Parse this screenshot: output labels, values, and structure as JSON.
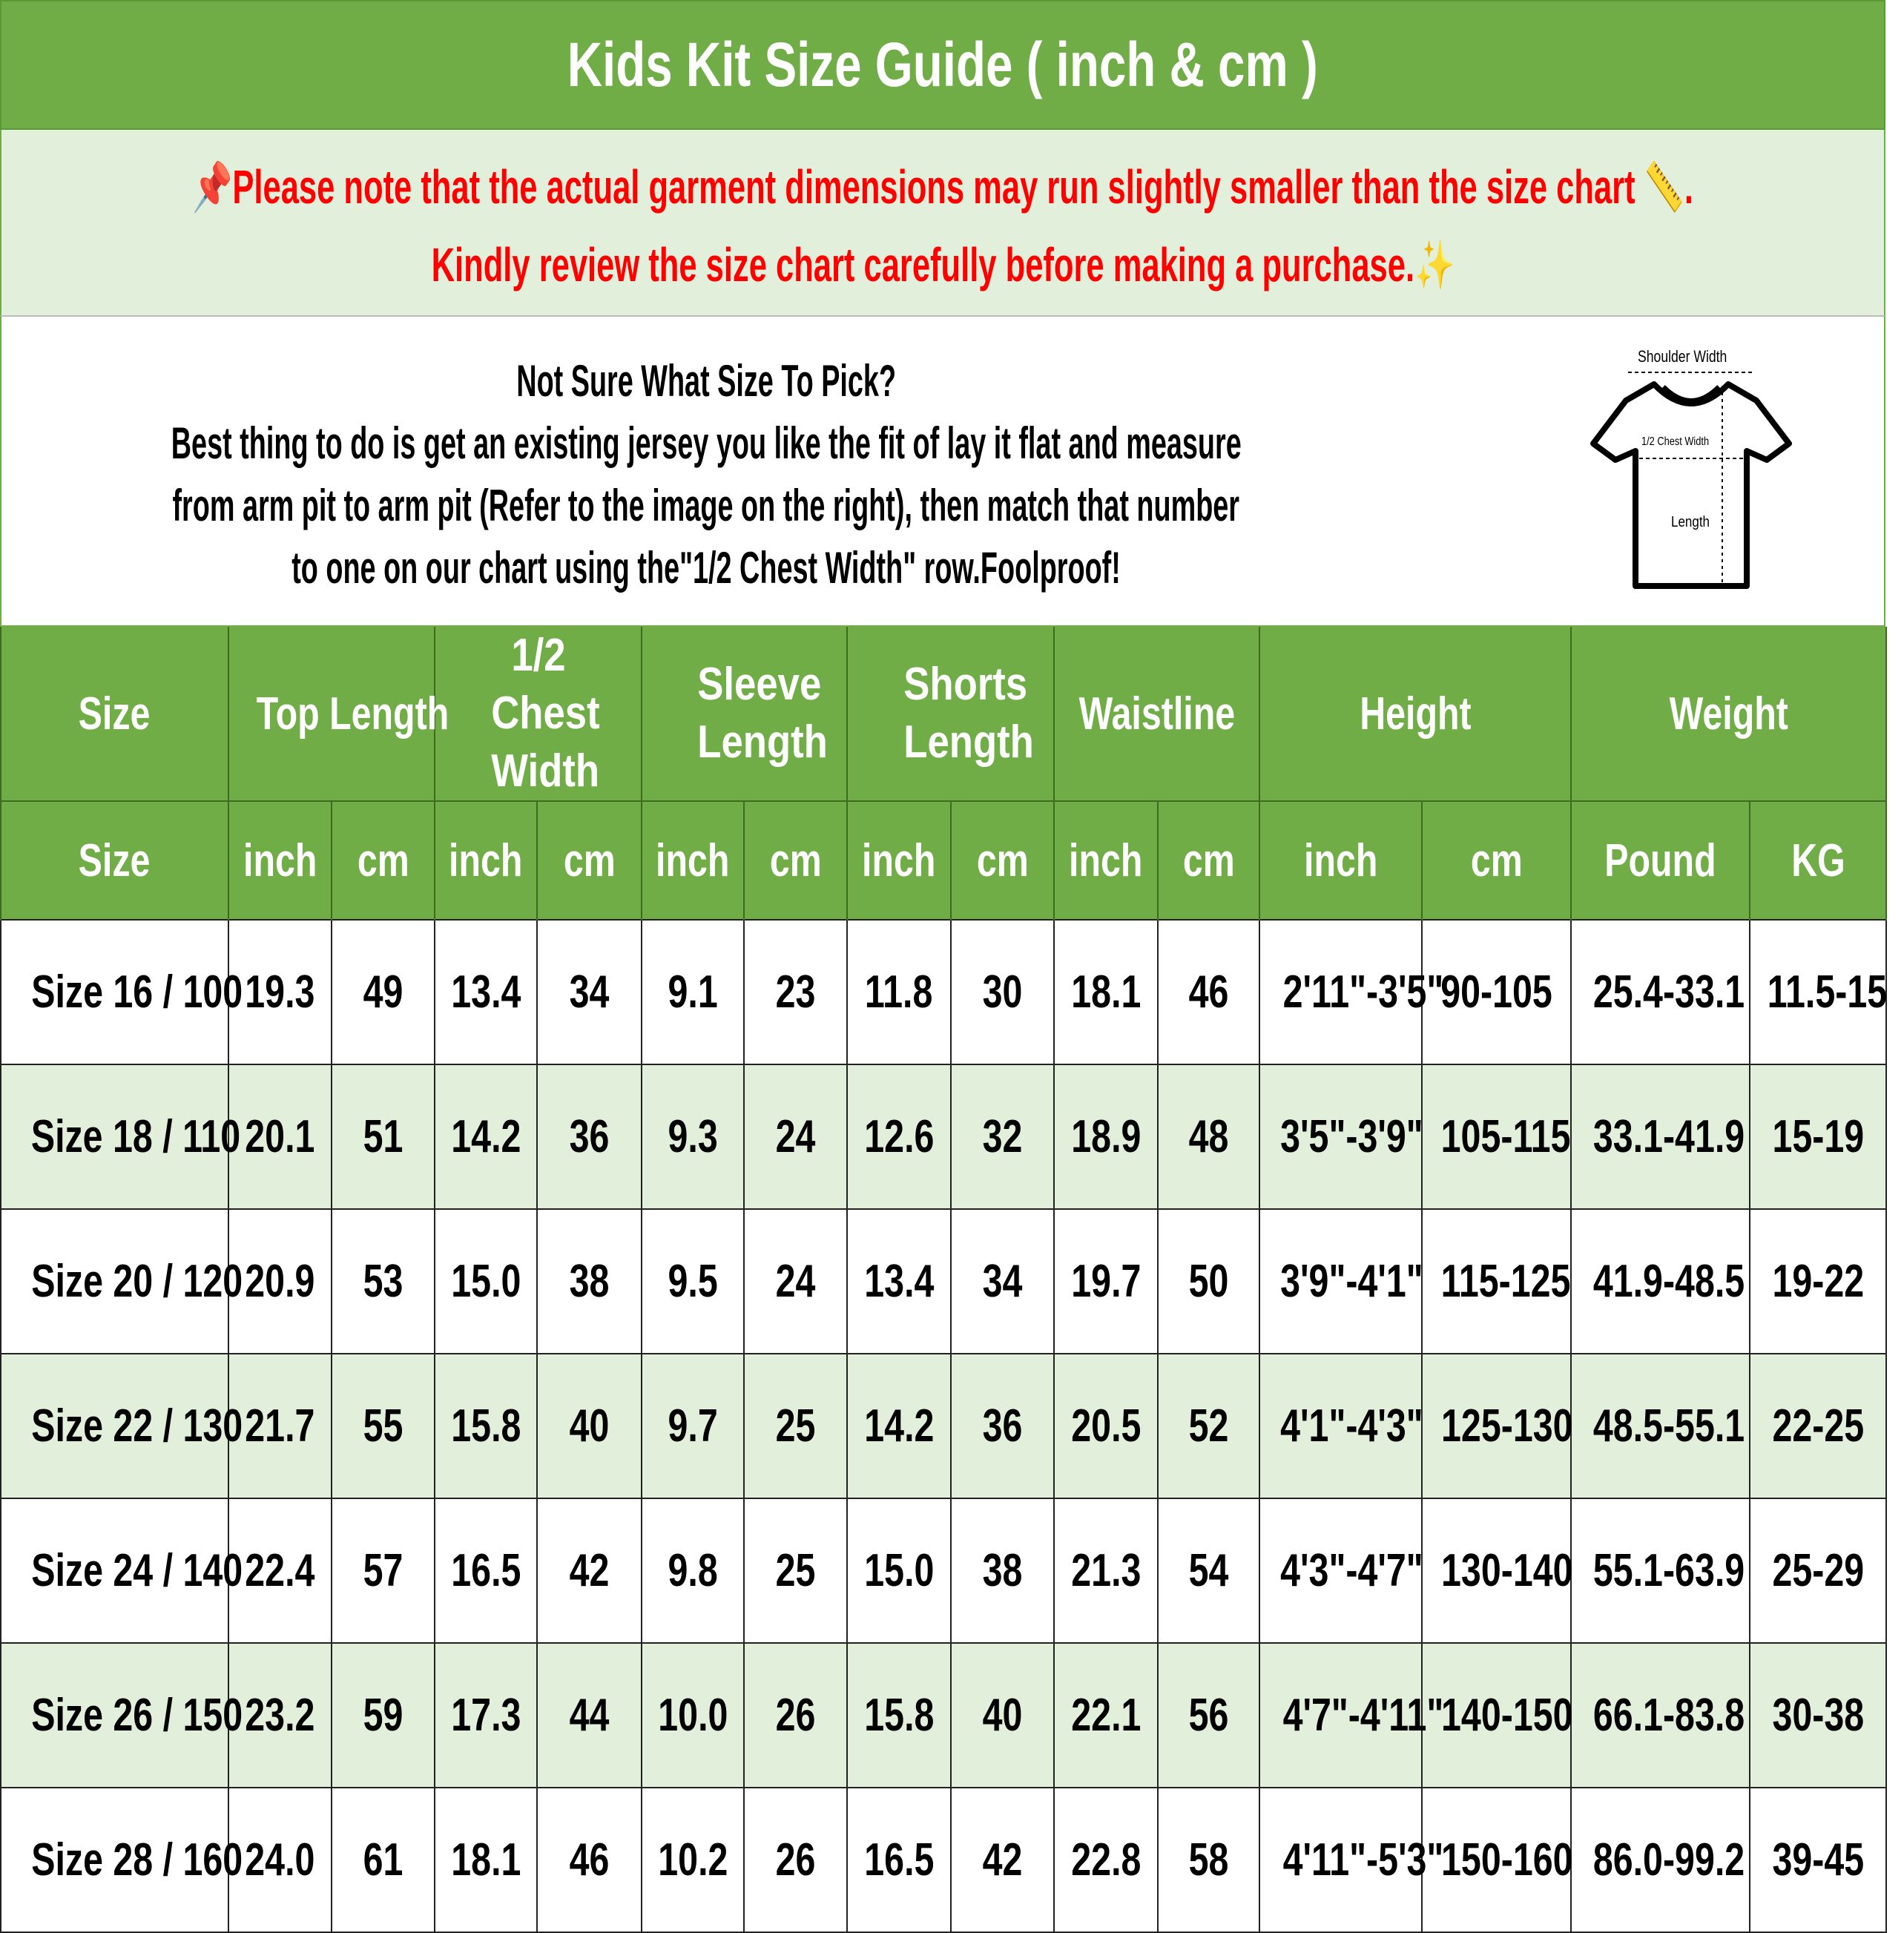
{
  "title": "Kids Kit Size Guide ( inch & cm )",
  "note": {
    "line1": "📌Please note that the actual garment dimensions may run slightly smaller than the size chart 📏.",
    "line2": "Kindly review the size chart carefully before making a purchase.✨",
    "color": "#FF0000"
  },
  "info": {
    "heading": "Not Sure What Size To Pick?",
    "line1": "Best thing to do is get an existing jersey you like the fit of lay it flat and measure",
    "line2": "from arm pit to arm pit (Refer to the image on the right), then match that number",
    "line3": "to one on our chart using the\"1/2 Chest Width\" row.Foolproof!"
  },
  "diagram": {
    "shoulder": "Shoulder Width",
    "chest": "1/2 Chest Width",
    "length": "Length"
  },
  "colors": {
    "header": "#70AD47",
    "alt_row": "#E2EFDA"
  },
  "table": {
    "groups": [
      {
        "label": "Size",
        "span": 1
      },
      {
        "label": "Top Length",
        "span": 2
      },
      {
        "label": "1/2 Chest Width",
        "span": 2
      },
      {
        "label": "Sleeve Length",
        "span": 2
      },
      {
        "label": "Shorts Length",
        "span": 2
      },
      {
        "label": "Waistline",
        "span": 2
      },
      {
        "label": "Height",
        "span": 2
      },
      {
        "label": "Weight",
        "span": 2
      }
    ],
    "units": [
      "Size",
      "inch",
      "cm",
      "inch",
      "cm",
      "inch",
      "cm",
      "inch",
      "cm",
      "inch",
      "cm",
      "inch",
      "cm",
      "Pound",
      "KG"
    ],
    "rows": [
      [
        "Size 16 / 100",
        "19.3",
        "49",
        "13.4",
        "34",
        "9.1",
        "23",
        "11.8",
        "30",
        "18.1",
        "46",
        "2'11\"-3'5\"",
        "90-105",
        "25.4-33.1",
        "11.5-15"
      ],
      [
        "Size 18 / 110",
        "20.1",
        "51",
        "14.2",
        "36",
        "9.3",
        "24",
        "12.6",
        "32",
        "18.9",
        "48",
        "3'5\"-3'9\"",
        "105-115",
        "33.1-41.9",
        "15-19"
      ],
      [
        "Size 20 / 120",
        "20.9",
        "53",
        "15.0",
        "38",
        "9.5",
        "24",
        "13.4",
        "34",
        "19.7",
        "50",
        "3'9\"-4'1\"",
        "115-125",
        "41.9-48.5",
        "19-22"
      ],
      [
        "Size 22 / 130",
        "21.7",
        "55",
        "15.8",
        "40",
        "9.7",
        "25",
        "14.2",
        "36",
        "20.5",
        "52",
        "4'1\"-4'3\"",
        "125-130",
        "48.5-55.1",
        "22-25"
      ],
      [
        "Size 24 / 140",
        "22.4",
        "57",
        "16.5",
        "42",
        "9.8",
        "25",
        "15.0",
        "38",
        "21.3",
        "54",
        "4'3\"-4'7\"",
        "130-140",
        "55.1-63.9",
        "25-29"
      ],
      [
        "Size 26 / 150",
        "23.2",
        "59",
        "17.3",
        "44",
        "10.0",
        "26",
        "15.8",
        "40",
        "22.1",
        "56",
        "4'7\"-4'11\"",
        "140-150",
        "66.1-83.8",
        "30-38"
      ],
      [
        "Size 28 / 160",
        "24.0",
        "61",
        "18.1",
        "46",
        "10.2",
        "26",
        "16.5",
        "42",
        "22.8",
        "58",
        "4'11\"-5'3\"",
        "150-160",
        "86.0-99.2",
        "39-45"
      ]
    ]
  }
}
